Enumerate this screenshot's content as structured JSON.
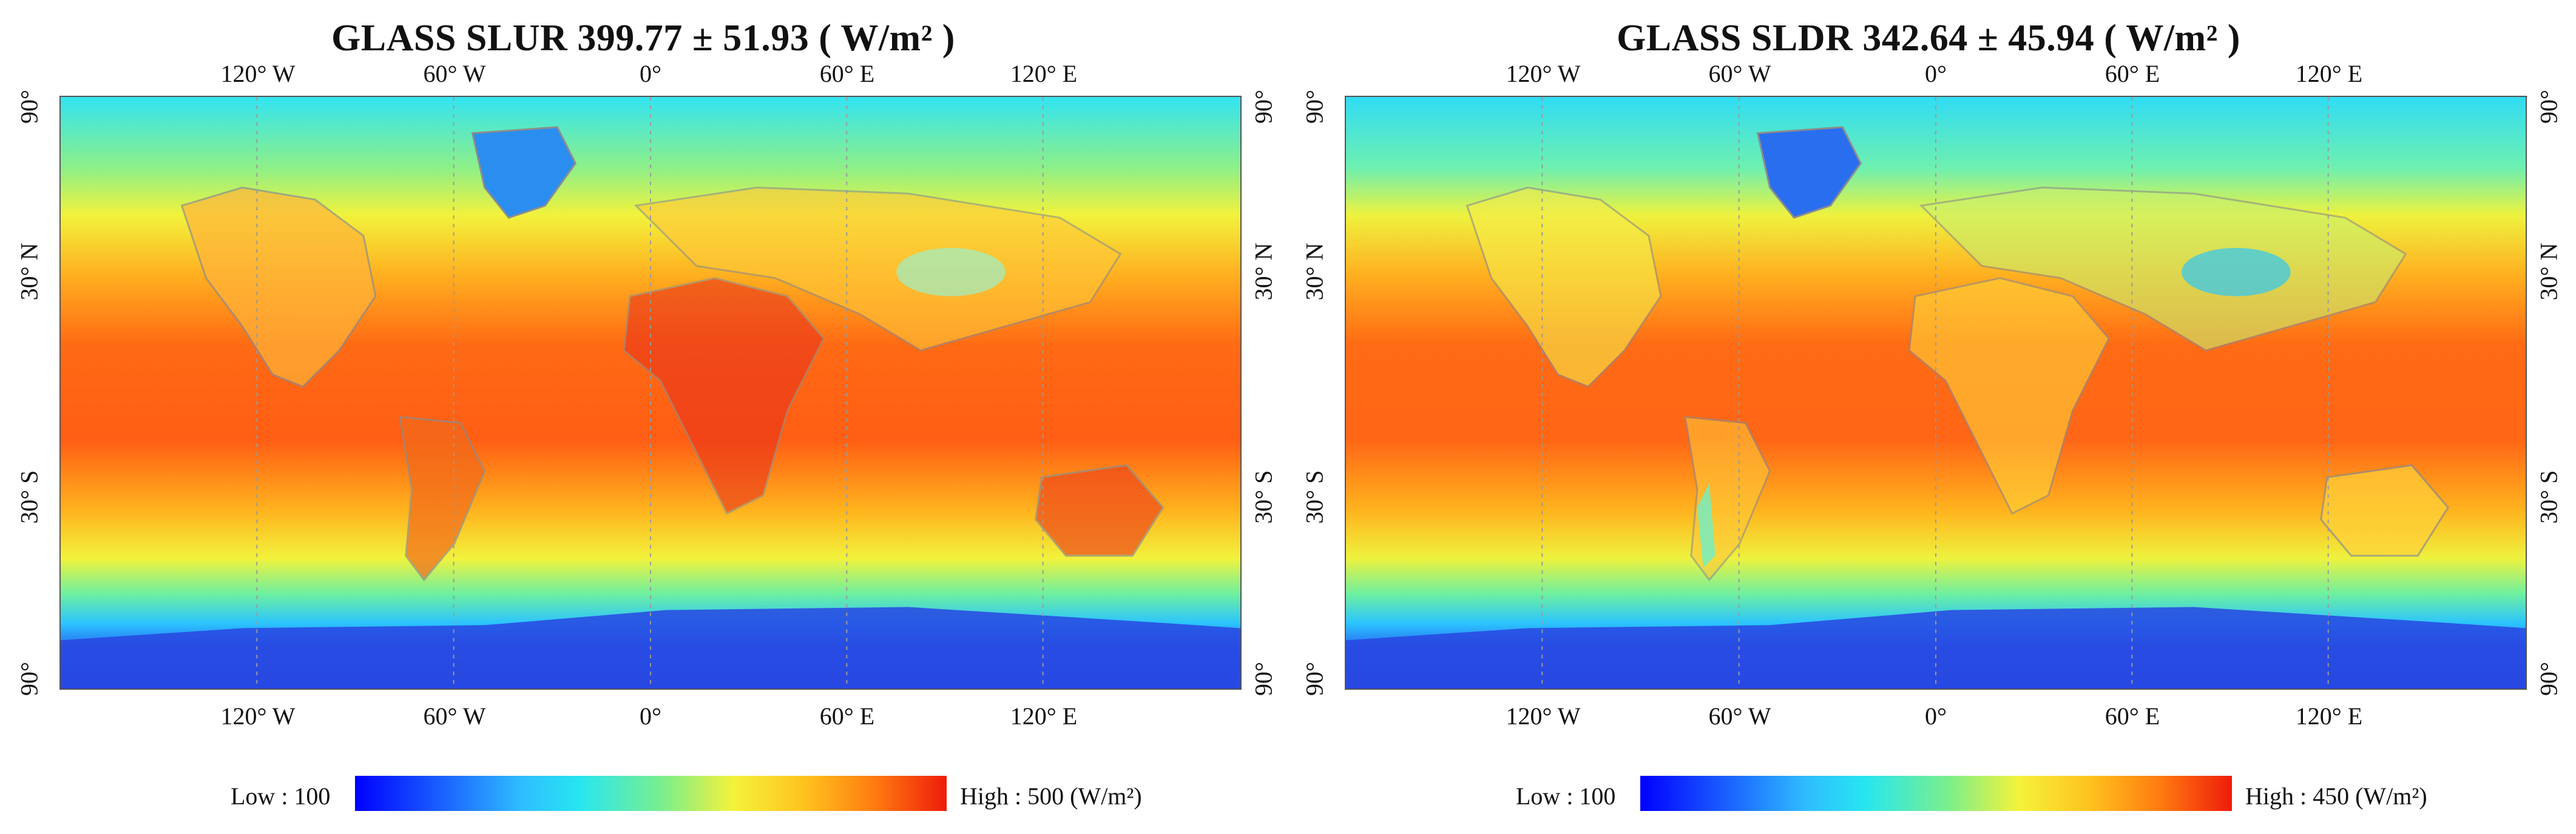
{
  "panels": [
    {
      "title": "GLASS SLUR 399.77 ± 51.93 ( W/m² )",
      "lon_ticks": [
        "120° W",
        "60° W",
        "0°",
        "60° E",
        "120° E"
      ],
      "lat_ticks": [
        "90°",
        "30° N",
        "30° S",
        "90°"
      ],
      "legend": {
        "low_label": "Low : 100",
        "high_label": "High : 500 (W/m²)"
      }
    },
    {
      "title": "GLASS SLDR 342.64 ± 45.94 ( W/m² )",
      "lon_ticks": [
        "120° W",
        "60° W",
        "0°",
        "60° E",
        "120° E"
      ],
      "lat_ticks": [
        "90°",
        "30° N",
        "30° S",
        "90°"
      ],
      "legend": {
        "low_label": "Low : 100",
        "high_label": "High : 450 (W/m²)"
      }
    }
  ],
  "colors": {
    "low": "#0000ff",
    "mid_low": "#2fbcff",
    "mid": "#f5f23a",
    "high": "#ee1c0a",
    "coastline": "#8c8c8c"
  }
}
